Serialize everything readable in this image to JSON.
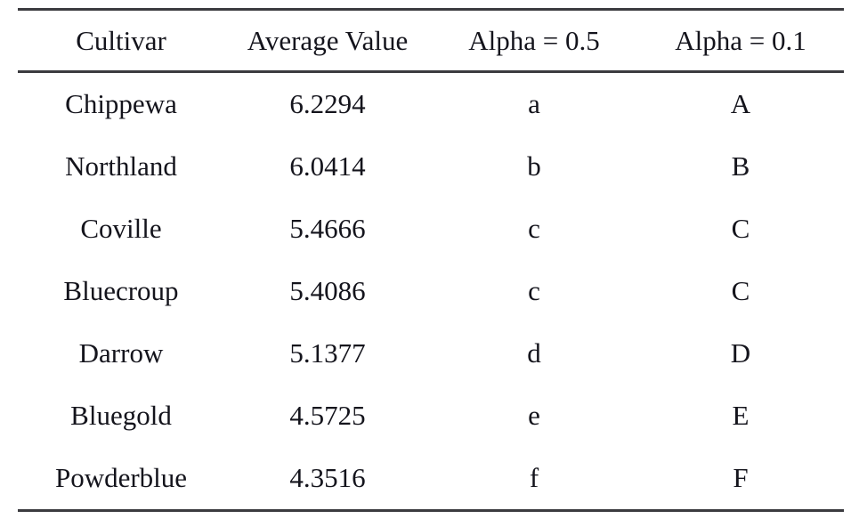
{
  "colors": {
    "background": "#ffffff",
    "text": "#14141c",
    "rule": "#3b3b3f"
  },
  "table": {
    "headers": [
      "Cultivar",
      "Average Value",
      "Alpha = 0.5",
      "Alpha = 0.1"
    ],
    "rows": [
      {
        "cultivar": "Chippewa",
        "average_value": "6.2294",
        "alpha_05": "a",
        "alpha_01": "A"
      },
      {
        "cultivar": "Northland",
        "average_value": "6.0414",
        "alpha_05": "b",
        "alpha_01": "B"
      },
      {
        "cultivar": "Coville",
        "average_value": "5.4666",
        "alpha_05": "c",
        "alpha_01": "C"
      },
      {
        "cultivar": "Bluecroup",
        "average_value": "5.4086",
        "alpha_05": "c",
        "alpha_01": "C"
      },
      {
        "cultivar": "Darrow",
        "average_value": "5.1377",
        "alpha_05": "d",
        "alpha_01": "D"
      },
      {
        "cultivar": "Bluegold",
        "average_value": "4.5725",
        "alpha_05": "e",
        "alpha_01": "E"
      },
      {
        "cultivar": "Powderblue",
        "average_value": "4.3516",
        "alpha_05": "f",
        "alpha_01": "F"
      }
    ]
  }
}
